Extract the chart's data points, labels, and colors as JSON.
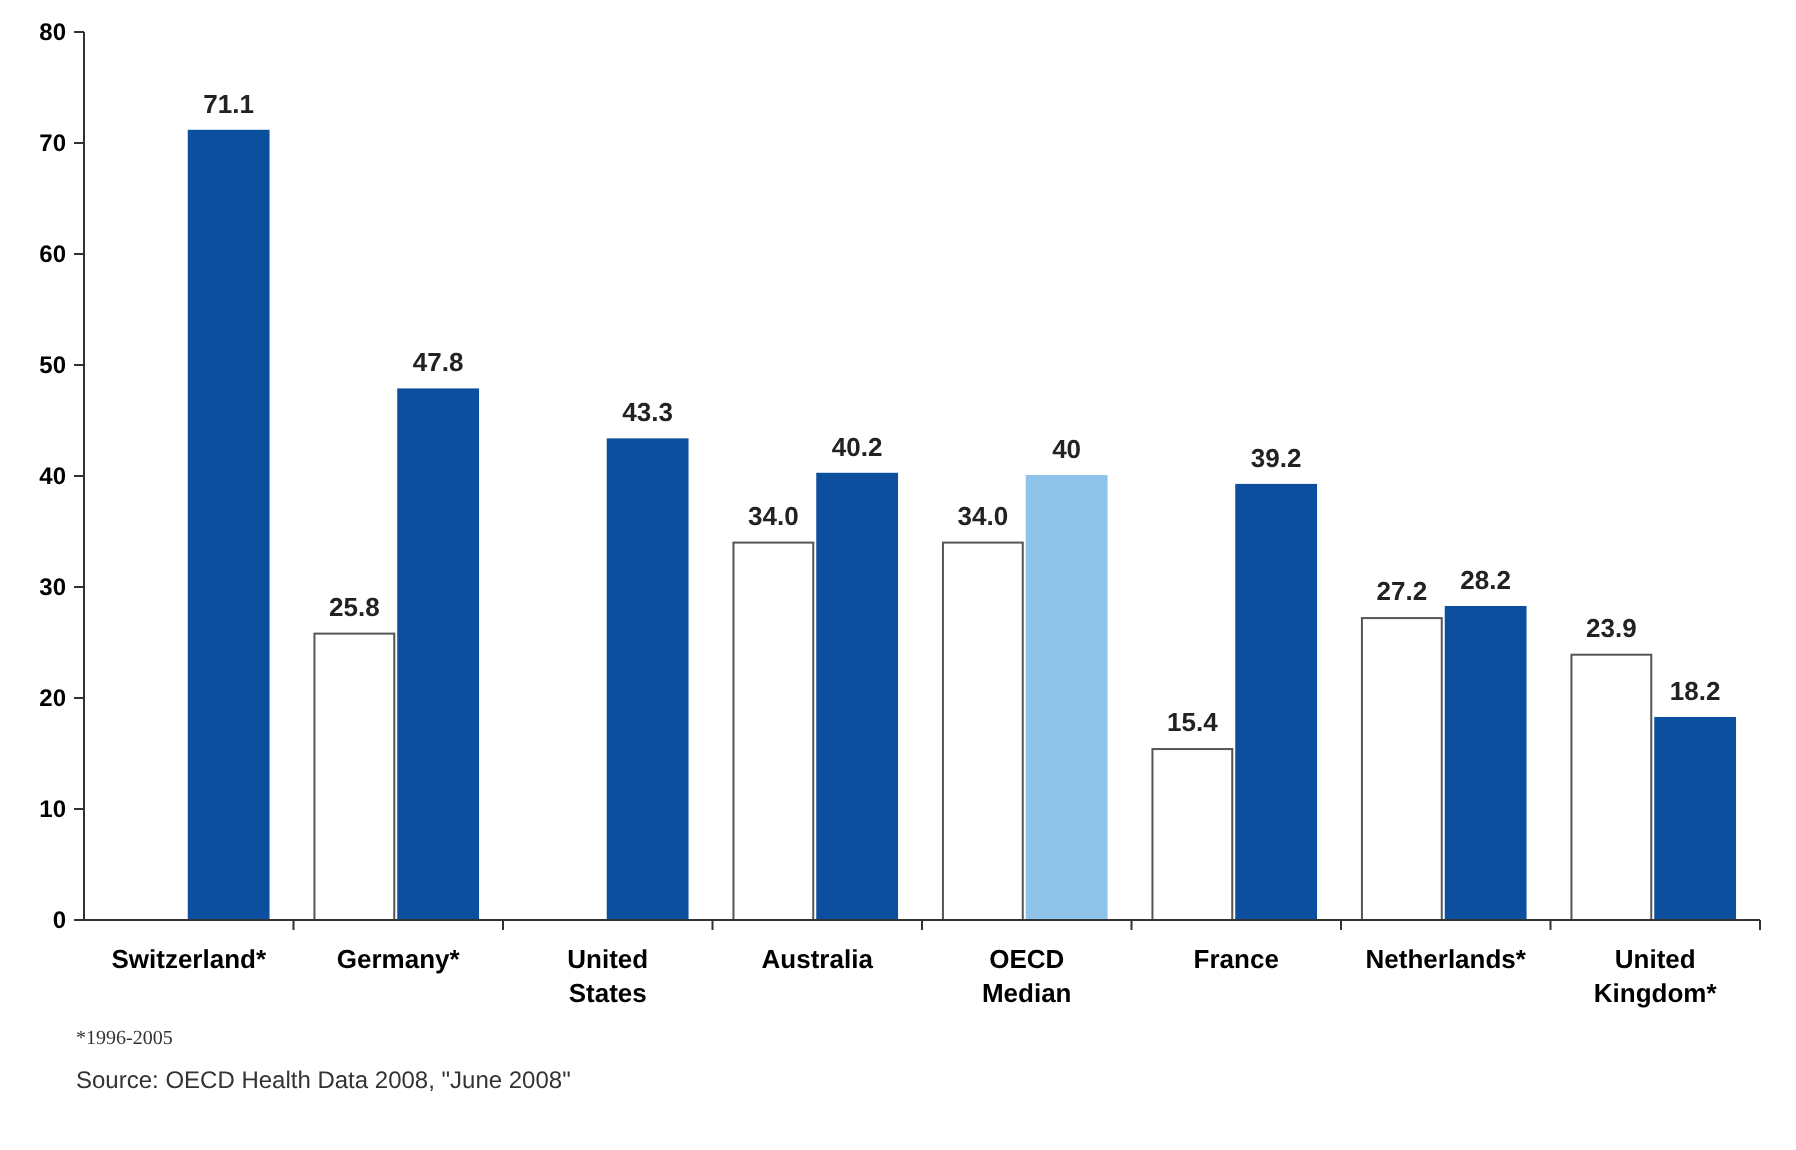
{
  "chart_data": {
    "type": "bar",
    "categories": [
      "Switzerland*",
      "Germany*",
      "United States",
      "Australia",
      "OECD Median",
      "France",
      "Netherlands*",
      "United Kingdom*"
    ],
    "series": [
      {
        "color": "#ffffff",
        "values": [
          null,
          25.8,
          null,
          34.0,
          34.0,
          15.4,
          27.2,
          23.9
        ],
        "value_labels": [
          null,
          "25.8",
          null,
          "34.0",
          "34.0",
          "15.4",
          "27.2",
          "23.9"
        ]
      },
      {
        "colors": [
          "#0b4f9e",
          "#0b4f9e",
          "#0b4f9e",
          "#0b4f9e",
          "#8ec3ea",
          "#0b4f9e",
          "#0b4f9e",
          "#0b4f9e"
        ],
        "values": [
          71.1,
          47.8,
          43.3,
          40.2,
          40,
          39.2,
          28.2,
          18.2
        ],
        "value_labels": [
          "71.1",
          "47.8",
          "43.3",
          "40.2",
          "40",
          "39.2",
          "28.2",
          "18.2"
        ]
      }
    ],
    "ylim": [
      0,
      80
    ],
    "yticks": [
      0,
      10,
      20,
      30,
      40,
      50,
      60,
      70,
      80
    ],
    "grid": false,
    "annotations": [
      "*1996-2005",
      "Source: OECD Health Data 2008, \"June 2008\""
    ]
  }
}
